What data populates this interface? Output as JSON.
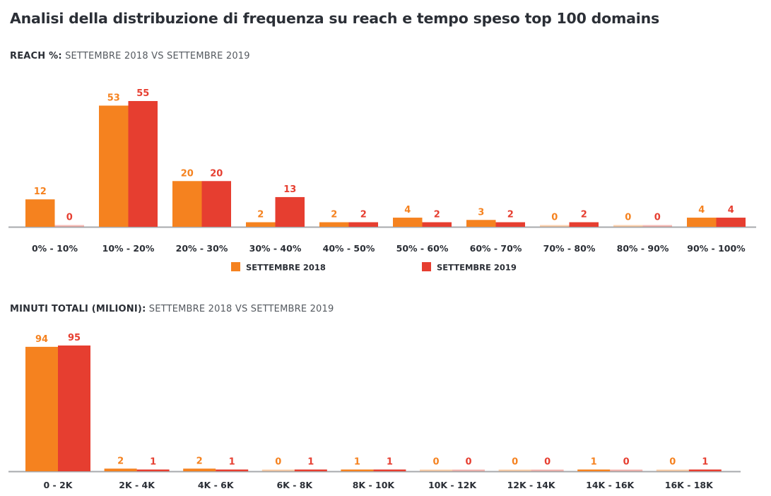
{
  "title": "Analisi della distribuzione di frequenza su reach e tempo speso top 100 domains",
  "colors": {
    "s2018": "#f5821f",
    "s2019": "#e63e30",
    "axis": "#a7a9ac"
  },
  "chart_data": [
    {
      "type": "bar",
      "title_bold": "REACH %:",
      "title_rest": " SETTEMBRE 2018 VS SETTEMBRE 2019",
      "xlabel": "",
      "ylabel": "",
      "ylim": [
        0,
        55
      ],
      "grid": false,
      "legend": "bottom-center",
      "categories": [
        "0% - 10%",
        "10% - 20%",
        "20% - 30%",
        "30% - 40%",
        "40% - 50%",
        "50% - 60%",
        "60% - 70%",
        "70% - 80%",
        "80% - 90%",
        "90% - 100%"
      ],
      "series": [
        {
          "name": "SETTEMBRE 2018",
          "values": [
            12,
            53,
            20,
            2,
            2,
            4,
            3,
            0,
            0,
            4
          ]
        },
        {
          "name": "SETTEMBRE 2019",
          "values": [
            0,
            55,
            20,
            13,
            2,
            2,
            2,
            2,
            0,
            4
          ]
        }
      ]
    },
    {
      "type": "bar",
      "title_bold": "MINUTI TOTALI (MILIONI):",
      "title_rest": " SETTEMBRE 2018 VS SETTEMBRE 2019",
      "xlabel": "",
      "ylabel": "",
      "ylim": [
        0,
        95
      ],
      "grid": false,
      "legend": "none",
      "categories": [
        "0 - 2K",
        "2K - 4K",
        "4K - 6K",
        "6K - 8K",
        "8K - 10K",
        "10K - 12K",
        "12K - 14K",
        "14K - 16K",
        "16K - 18K"
      ],
      "series": [
        {
          "name": "SETTEMBRE 2018",
          "values": [
            94,
            2,
            2,
            0,
            1,
            0,
            0,
            1,
            0
          ]
        },
        {
          "name": "SETTEMBRE 2019",
          "values": [
            95,
            1,
            1,
            1,
            1,
            0,
            0,
            0,
            1
          ]
        }
      ]
    }
  ]
}
